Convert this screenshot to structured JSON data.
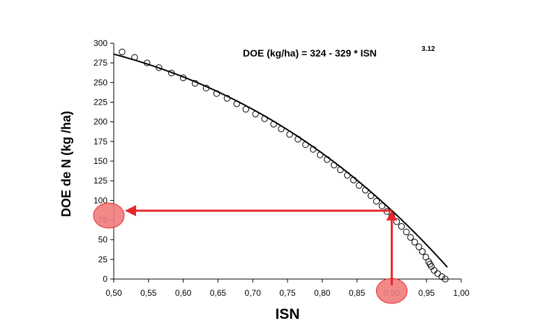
{
  "chart_data": {
    "type": "scatter",
    "xlabel": "ISN",
    "ylabel": "DOE de N (kg /ha)",
    "xlim": [
      0.5,
      1.0
    ],
    "ylim": [
      0,
      300
    ],
    "x_ticks": [
      "0,50",
      "0,55",
      "0,60",
      "0,65",
      "0,70",
      "0,75",
      "0,80",
      "0,85",
      "0,90",
      "0,95",
      "1,00"
    ],
    "y_ticks": [
      "0",
      "25",
      "50",
      "75",
      "100",
      "125",
      "150",
      "175",
      "200",
      "225",
      "250",
      "275",
      "300"
    ],
    "equation": {
      "text": "DOE (kg/ha) = 324 - 329 * ISN",
      "exponent": "3.12",
      "a": 324,
      "b": 329,
      "p": 3.12
    },
    "series": [
      {
        "kind": "points",
        "marker": "open-circle",
        "x": [
          0.512,
          0.53,
          0.548,
          0.565,
          0.583,
          0.6,
          0.617,
          0.633,
          0.648,
          0.663,
          0.677,
          0.69,
          0.704,
          0.717,
          0.73,
          0.741,
          0.753,
          0.765,
          0.776,
          0.787,
          0.797,
          0.807,
          0.817,
          0.826,
          0.836,
          0.845,
          0.853,
          0.862,
          0.87,
          0.878,
          0.886,
          0.893,
          0.9,
          0.907,
          0.914,
          0.921,
          0.927,
          0.933,
          0.939,
          0.944,
          0.949,
          0.953,
          0.955,
          0.957,
          0.961,
          0.966,
          0.972,
          0.977
        ],
        "y": [
          289,
          282,
          275,
          269,
          262,
          256,
          249,
          243,
          236,
          230,
          223,
          216,
          210,
          204,
          197,
          191,
          184,
          178,
          171,
          165,
          158,
          152,
          145,
          139,
          132,
          126,
          119,
          113,
          106,
          99,
          93,
          86,
          80,
          73,
          67,
          60,
          53,
          47,
          41,
          35,
          28,
          22,
          19,
          16,
          11,
          7,
          3,
          0
        ]
      },
      {
        "kind": "fit-curve",
        "x_range": [
          0.5,
          0.98
        ]
      }
    ],
    "annotation": {
      "x": 0.9,
      "y": 87,
      "x_label": "0,90",
      "y_label": "87",
      "color": "#e8252a",
      "highlight_fill": "#f07c7c"
    }
  }
}
